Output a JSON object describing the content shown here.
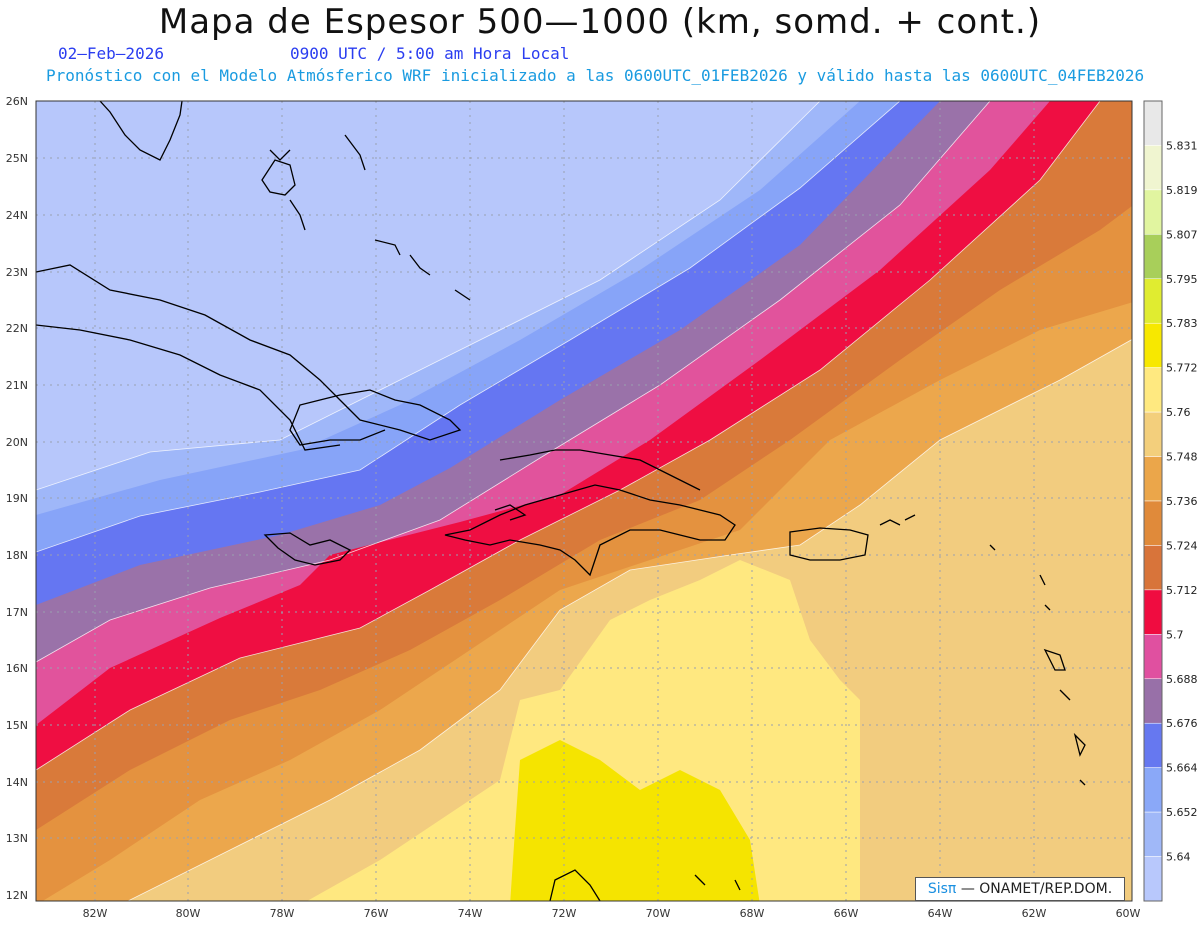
{
  "header": {
    "title": "Mapa de Espesor 500—1000 (km, somd. + cont.)",
    "date": "02—Feb—2026",
    "time": "0900 UTC / 5:00 am Hora Local",
    "forecast": "Pronóstico con el Modelo Atmósferico WRF inicializado a las 0600UTC_01FEB2026 y válido hasta las  0600UTC_04FEB2026"
  },
  "axes": {
    "lat_labels": [
      "26N",
      "25N",
      "24N",
      "23N",
      "22N",
      "21N",
      "20N",
      "19N",
      "18N",
      "17N",
      "16N",
      "15N",
      "14N",
      "13N",
      "12N"
    ],
    "lon_labels": [
      "82W",
      "80W",
      "78W",
      "76W",
      "74W",
      "72W",
      "70W",
      "68W",
      "66W",
      "64W",
      "62W",
      "60W"
    ]
  },
  "legend": {
    "values": [
      "5.831",
      "5.819",
      "5.807",
      "5.795",
      "5.783",
      "5.772",
      "5.76",
      "5.748",
      "5.736",
      "5.724",
      "5.712",
      "5.7",
      "5.688",
      "5.676",
      "5.664",
      "5.652",
      "5.64"
    ],
    "colors": [
      "#e8e8e8",
      "#f0f5d0",
      "#e1f5a0",
      "#a8cf5a",
      "#e0ec30",
      "#f7e800",
      "#ffe980",
      "#f3cf7c",
      "#eba64a",
      "#e08a3a",
      "#d8743a",
      "#f00c40",
      "#e050a0",
      "#9870a8",
      "#6678f0",
      "#8aa8f8",
      "#a0b8f8",
      "#b8c8fc"
    ]
  },
  "credit": {
    "brand": "Sisπ",
    "text": "— ONAMET/REP.DOM."
  },
  "colors": {
    "band_colors": [
      "#b7c7fb",
      "#9fb7f9",
      "#87a4f8",
      "#6576f2",
      "#9a72a9",
      "#e1539c",
      "#ef0e42",
      "#d97a3a",
      "#e4923f",
      "#eca74c",
      "#f2cc7f",
      "#ffe880",
      "#f5e400"
    ]
  }
}
